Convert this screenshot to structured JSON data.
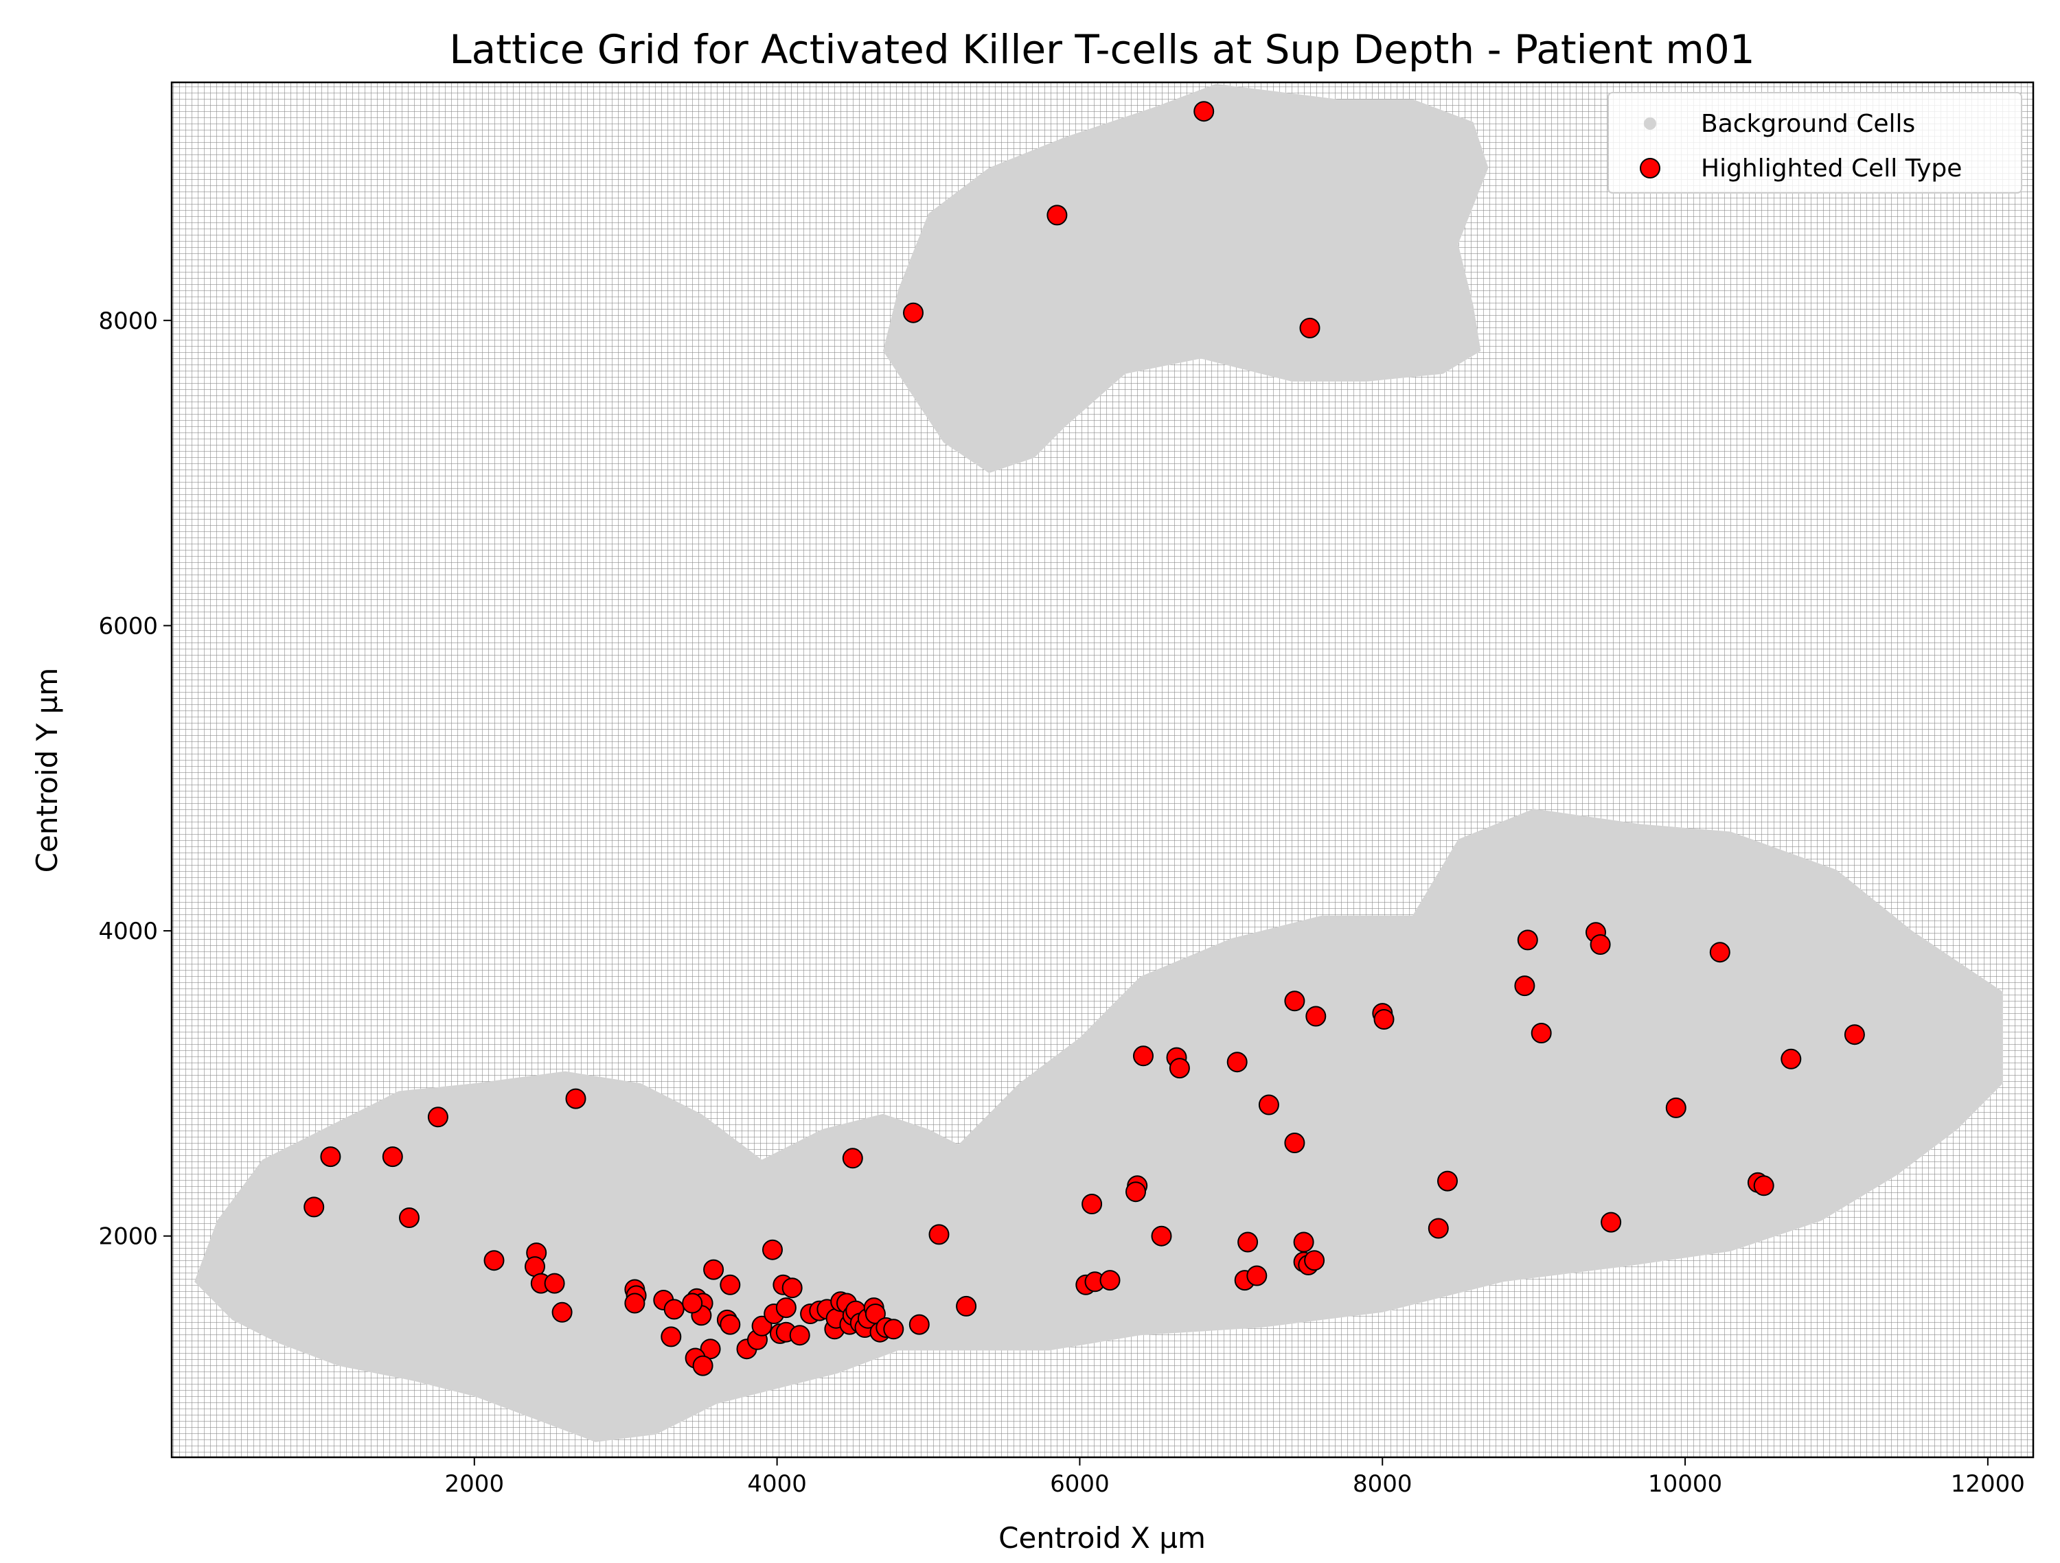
{
  "chart_data": {
    "type": "scatter",
    "title": "Lattice Grid for Activated Killer T-cells at Sup Depth - Patient m01",
    "xlabel": "Centroid X µm",
    "ylabel": "Centroid Y µm",
    "xlim": [
      0,
      12300
    ],
    "ylim": [
      550,
      9560
    ],
    "xticks": [
      2000,
      4000,
      6000,
      8000,
      10000,
      12000
    ],
    "yticks": [
      2000,
      4000,
      6000,
      8000
    ],
    "grid": "dense dotted lattice",
    "legend_position": "top-right",
    "colors": {
      "background_cells": "#d3d3d3",
      "highlighted": "#ff0000",
      "marker_edge": "#000000",
      "lattice": "#8a8a8a"
    },
    "legend": [
      {
        "label": "Background Cells",
        "color": "#d3d3d3"
      },
      {
        "label": "Highlighted Cell Type",
        "color": "#ff0000"
      }
    ],
    "background_regions": [
      {
        "name": "upper tissue",
        "outline": [
          [
            4800,
            8200
          ],
          [
            5000,
            8700
          ],
          [
            5400,
            9000
          ],
          [
            5900,
            9200
          ],
          [
            6500,
            9400
          ],
          [
            6900,
            9550
          ],
          [
            7300,
            9500
          ],
          [
            7700,
            9450
          ],
          [
            8200,
            9450
          ],
          [
            8600,
            9300
          ],
          [
            8700,
            9000
          ],
          [
            8500,
            8500
          ],
          [
            8600,
            8100
          ],
          [
            8650,
            7800
          ],
          [
            8400,
            7650
          ],
          [
            7900,
            7600
          ],
          [
            7400,
            7600
          ],
          [
            6800,
            7750
          ],
          [
            6300,
            7650
          ],
          [
            5900,
            7300
          ],
          [
            5700,
            7100
          ],
          [
            5400,
            7000
          ],
          [
            5100,
            7200
          ],
          [
            4900,
            7500
          ],
          [
            4700,
            7800
          ]
        ]
      },
      {
        "name": "left lower tissue",
        "outline": [
          [
            150,
            1700
          ],
          [
            300,
            2100
          ],
          [
            600,
            2500
          ],
          [
            1000,
            2700
          ],
          [
            1500,
            2950
          ],
          [
            2000,
            3000
          ],
          [
            2600,
            3080
          ],
          [
            3100,
            3000
          ],
          [
            3500,
            2800
          ],
          [
            3900,
            2500
          ],
          [
            4300,
            2700
          ],
          [
            4700,
            2800
          ],
          [
            5000,
            2700
          ],
          [
            5200,
            2600
          ],
          [
            5600,
            3000
          ],
          [
            6000,
            3300
          ],
          [
            6400,
            3700
          ],
          [
            7000,
            3950
          ],
          [
            7600,
            4100
          ],
          [
            8200,
            4100
          ],
          [
            8500,
            4600
          ],
          [
            9000,
            4800
          ],
          [
            9700,
            4700
          ],
          [
            10300,
            4650
          ],
          [
            11000,
            4400
          ],
          [
            11500,
            4000
          ],
          [
            12100,
            3600
          ],
          [
            12100,
            3000
          ],
          [
            11800,
            2700
          ],
          [
            11400,
            2400
          ],
          [
            10900,
            2100
          ],
          [
            10300,
            1900
          ],
          [
            9600,
            1800
          ],
          [
            8800,
            1700
          ],
          [
            8000,
            1500
          ],
          [
            7200,
            1400
          ],
          [
            6400,
            1350
          ],
          [
            5800,
            1250
          ],
          [
            5200,
            1250
          ],
          [
            4800,
            1250
          ],
          [
            4400,
            1100
          ],
          [
            4000,
            1000
          ],
          [
            3600,
            900
          ],
          [
            3200,
            700
          ],
          [
            2800,
            650
          ],
          [
            2400,
            800
          ],
          [
            2000,
            950
          ],
          [
            1600,
            1050
          ],
          [
            1100,
            1150
          ],
          [
            700,
            1300
          ],
          [
            400,
            1450
          ]
        ]
      }
    ],
    "series": [
      {
        "name": "Highlighted Cell Type",
        "points": [
          [
            6820,
            9370
          ],
          [
            5850,
            8690
          ],
          [
            4900,
            8050
          ],
          [
            7520,
            7950
          ],
          [
            9410,
            3990
          ],
          [
            8960,
            3940
          ],
          [
            9440,
            3910
          ],
          [
            10230,
            3860
          ],
          [
            7420,
            3540
          ],
          [
            8940,
            3640
          ],
          [
            7560,
            3440
          ],
          [
            8000,
            3460
          ],
          [
            8010,
            3420
          ],
          [
            9050,
            3330
          ],
          [
            11120,
            3320
          ],
          [
            6420,
            3180
          ],
          [
            6640,
            3170
          ],
          [
            6660,
            3100
          ],
          [
            7040,
            3140
          ],
          [
            10700,
            3160
          ],
          [
            7250,
            2860
          ],
          [
            9940,
            2840
          ],
          [
            2670,
            2900
          ],
          [
            1760,
            2780
          ],
          [
            1050,
            2520
          ],
          [
            1460,
            2520
          ],
          [
            4500,
            2510
          ],
          [
            7420,
            2610
          ],
          [
            940,
            2190
          ],
          [
            1570,
            2120
          ],
          [
            6380,
            2330
          ],
          [
            6370,
            2290
          ],
          [
            8430,
            2360
          ],
          [
            10480,
            2350
          ],
          [
            10520,
            2330
          ],
          [
            6080,
            2210
          ],
          [
            5070,
            2010
          ],
          [
            6540,
            2000
          ],
          [
            8370,
            2050
          ],
          [
            9510,
            2090
          ],
          [
            2130,
            1840
          ],
          [
            2410,
            1890
          ],
          [
            2400,
            1800
          ],
          [
            2440,
            1690
          ],
          [
            2530,
            1690
          ],
          [
            2580,
            1500
          ],
          [
            3060,
            1650
          ],
          [
            3070,
            1610
          ],
          [
            3060,
            1560
          ],
          [
            3250,
            1580
          ],
          [
            3320,
            1520
          ],
          [
            3300,
            1340
          ],
          [
            3470,
            1590
          ],
          [
            3510,
            1560
          ],
          [
            3500,
            1480
          ],
          [
            3440,
            1560
          ],
          [
            3560,
            1260
          ],
          [
            3460,
            1200
          ],
          [
            3510,
            1150
          ],
          [
            3580,
            1780
          ],
          [
            3690,
            1680
          ],
          [
            3670,
            1450
          ],
          [
            3690,
            1420
          ],
          [
            3800,
            1260
          ],
          [
            3870,
            1320
          ],
          [
            3900,
            1410
          ],
          [
            3970,
            1910
          ],
          [
            3980,
            1490
          ],
          [
            4020,
            1360
          ],
          [
            4060,
            1370
          ],
          [
            4040,
            1680
          ],
          [
            4060,
            1530
          ],
          [
            4100,
            1660
          ],
          [
            4150,
            1350
          ],
          [
            4220,
            1490
          ],
          [
            4280,
            1510
          ],
          [
            4330,
            1520
          ],
          [
            4380,
            1390
          ],
          [
            4390,
            1460
          ],
          [
            4420,
            1570
          ],
          [
            4460,
            1560
          ],
          [
            4480,
            1420
          ],
          [
            4500,
            1480
          ],
          [
            4520,
            1510
          ],
          [
            4550,
            1430
          ],
          [
            4580,
            1400
          ],
          [
            4600,
            1460
          ],
          [
            4640,
            1530
          ],
          [
            4650,
            1490
          ],
          [
            4680,
            1370
          ],
          [
            4720,
            1400
          ],
          [
            4770,
            1390
          ],
          [
            4940,
            1420
          ],
          [
            5250,
            1540
          ],
          [
            6040,
            1680
          ],
          [
            6100,
            1700
          ],
          [
            6200,
            1710
          ],
          [
            7090,
            1710
          ],
          [
            7110,
            1960
          ],
          [
            7170,
            1740
          ],
          [
            7480,
            1960
          ],
          [
            7480,
            1830
          ],
          [
            7510,
            1810
          ],
          [
            7550,
            1840
          ]
        ]
      }
    ]
  }
}
